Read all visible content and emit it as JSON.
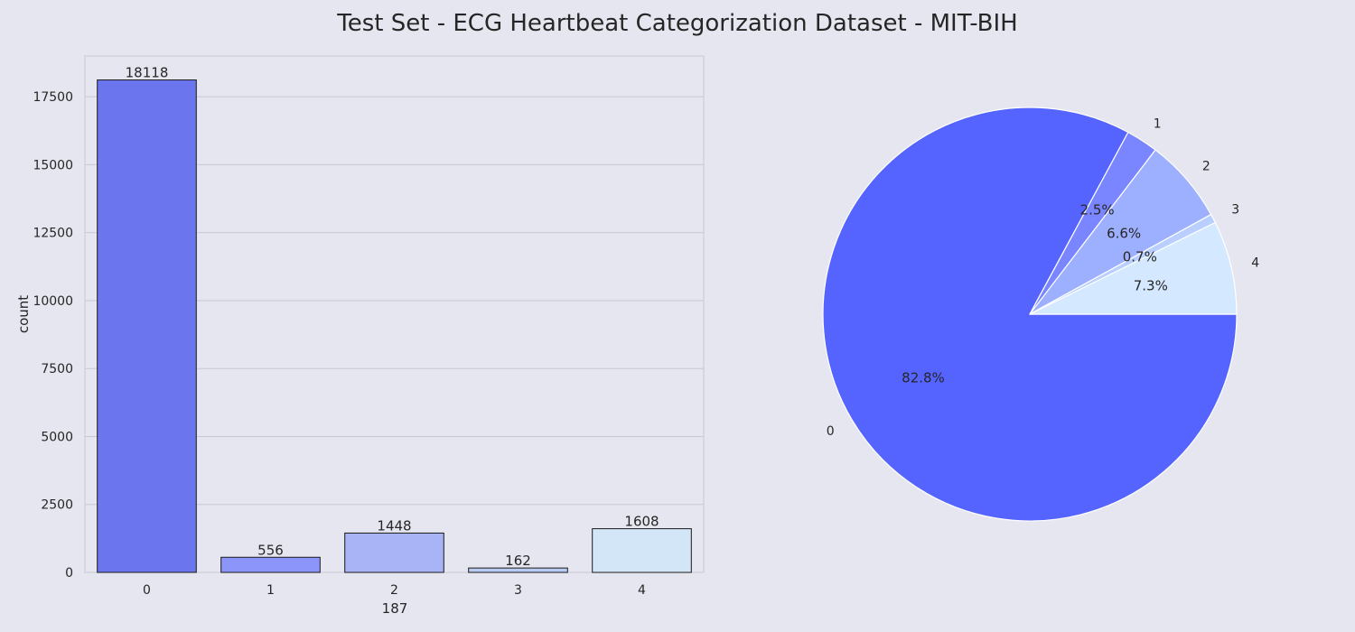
{
  "title": "Test Set - ECG Heartbeat Categorization Dataset - MIT-BIH",
  "chart_data": [
    {
      "type": "bar",
      "categories": [
        "0",
        "1",
        "2",
        "3",
        "4"
      ],
      "values": [
        18118,
        556,
        1448,
        162,
        1608
      ],
      "data_labels": [
        "18118",
        "556",
        "1448",
        "162",
        "1608"
      ],
      "xlabel": "187",
      "ylabel": "count",
      "ylim": [
        0,
        19000
      ],
      "yticks": [
        0,
        2500,
        5000,
        7500,
        10000,
        12500,
        15000,
        17500
      ],
      "grid": true,
      "colors": [
        "#6a75ee",
        "#8c96fa",
        "#a8b4f6",
        "#b8cbf2",
        "#d3e6f8"
      ]
    },
    {
      "type": "pie",
      "labels": [
        "0",
        "1",
        "2",
        "3",
        "4"
      ],
      "values": [
        82.8,
        2.5,
        6.6,
        0.7,
        7.3
      ],
      "pct_labels": [
        "82.8%",
        "2.5%",
        "6.6%",
        "0.7%",
        "7.3%"
      ],
      "colors": [
        "#5564ff",
        "#7a86ff",
        "#9db0ff",
        "#b8cfff",
        "#d4e8ff"
      ]
    }
  ]
}
